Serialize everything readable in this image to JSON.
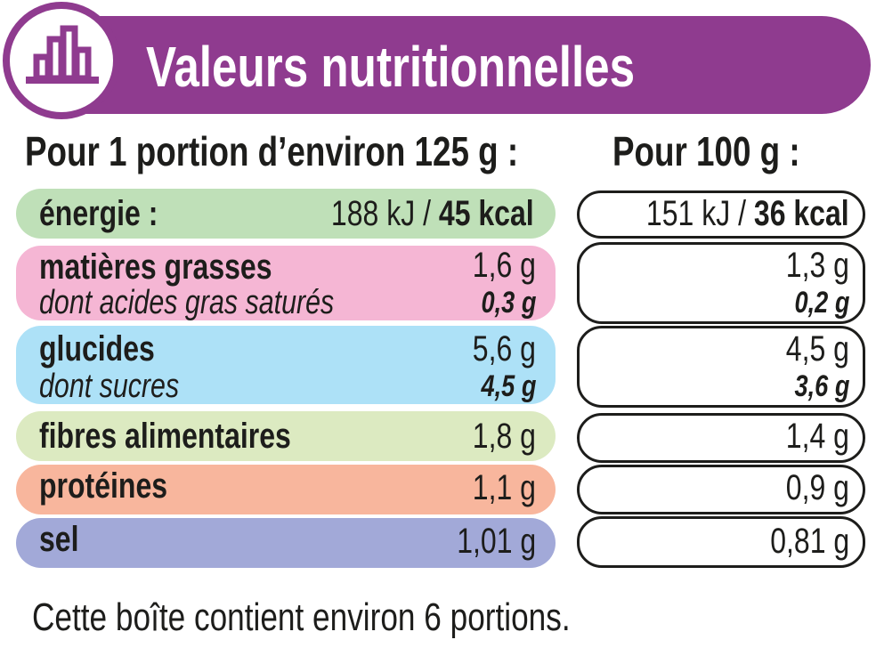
{
  "header": {
    "title": "Valeurs nutritionnelles",
    "icon": "bar-chart-icon"
  },
  "columns": {
    "portion": "Pour 1 portion d’environ 125 g :",
    "per100": "Pour 100 g :"
  },
  "colors": {
    "purple": "#8f3b8f",
    "energie": "#bfe0b8",
    "matieres": "#f5b6d4",
    "glucides": "#ade1f7",
    "fibres": "#dceac1",
    "proteines": "#f8b69d",
    "sel": "#a2a9d8"
  },
  "rows": {
    "energie": {
      "label": "énergie :",
      "portion_kj": "188 kJ / ",
      "portion_kcal": "45 kcal",
      "per100_kj": "151 kJ / ",
      "per100_kcal": "36 kcal"
    },
    "matieres": {
      "label": "matières grasses",
      "portion": "1,6 g",
      "per100": "1,3 g",
      "sub_label": "dont acides gras saturés",
      "sub_portion": "0,3 g",
      "sub_per100": "0,2 g"
    },
    "glucides": {
      "label": "glucides",
      "portion": "5,6 g",
      "per100": "4,5 g",
      "sub_label": "dont sucres",
      "sub_portion": "4,5 g",
      "sub_per100": "3,6 g"
    },
    "fibres": {
      "label": "fibres alimentaires",
      "portion": "1,8 g",
      "per100": "1,4 g"
    },
    "proteines": {
      "label": "protéines",
      "portion": "1,1 g",
      "per100": "0,9 g"
    },
    "sel": {
      "label": "sel",
      "portion": "1,01 g",
      "per100": "0,81 g"
    }
  },
  "footer": {
    "note": "Cette boîte contient environ 6 portions."
  }
}
